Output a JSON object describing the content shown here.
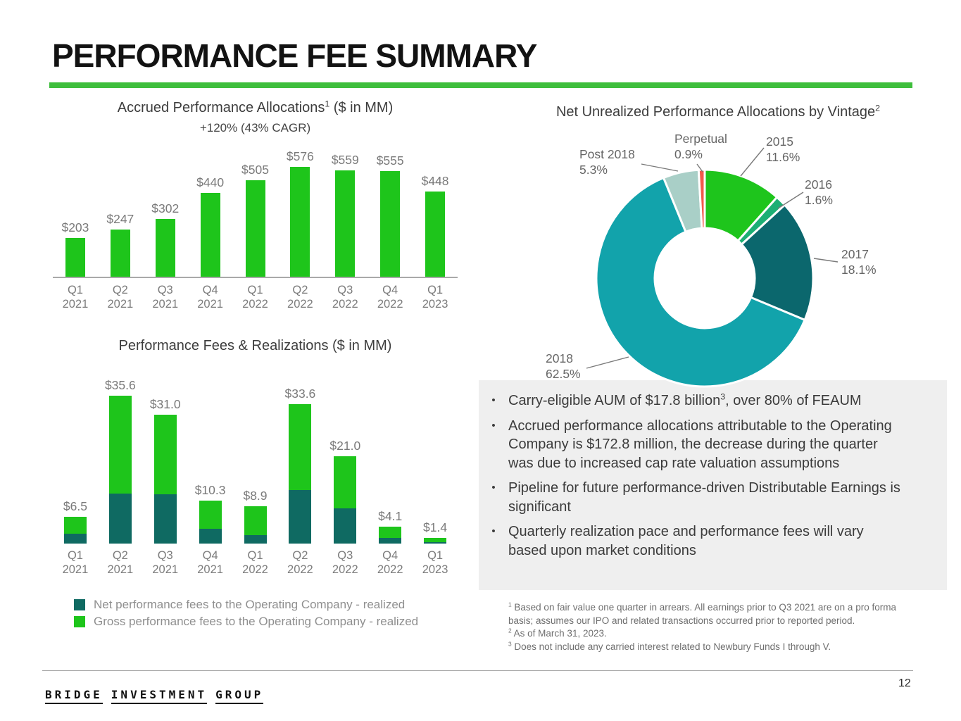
{
  "slide": {
    "title": "PERFORMANCE FEE SUMMARY",
    "page_number": "12",
    "logo_words": [
      "BRIDGE",
      "INVESTMENT",
      "GROUP"
    ],
    "accent_green": "#3ebe3c"
  },
  "chart_data": [
    {
      "id": "accrued-performance-allocations",
      "type": "bar",
      "title_runs": [
        {
          "t": "Accrued Performance Allocations"
        },
        {
          "sup": "1"
        },
        {
          "t": " ($ in MM)"
        }
      ],
      "subtitle": "+120% (43% CAGR)",
      "categories": [
        "Q1 2021",
        "Q2 2021",
        "Q3 2021",
        "Q4 2021",
        "Q1 2022",
        "Q2 2022",
        "Q3 2022",
        "Q4 2022",
        "Q1 2023"
      ],
      "values": [
        203,
        247,
        302,
        440,
        505,
        576,
        559,
        555,
        448
      ],
      "value_labels": [
        "$203",
        "$247",
        "$302",
        "$440",
        "$505",
        "$576",
        "$559",
        "$555",
        "$448"
      ],
      "bar_color": "#1ec51b",
      "axis_color": "#a9a9a9",
      "ylim": [
        0,
        576
      ],
      "grid": false
    },
    {
      "id": "performance-fees-realizations",
      "type": "stacked-bar",
      "title_runs": [
        {
          "t": "Performance Fees & Realizations ($ in MM)"
        }
      ],
      "categories": [
        "Q1 2021",
        "Q2 2021",
        "Q3 2021",
        "Q4 2021",
        "Q1 2022",
        "Q2 2022",
        "Q3 2022",
        "Q4 2022",
        "Q1 2023"
      ],
      "totals": [
        6.5,
        35.6,
        31.0,
        10.3,
        8.9,
        33.6,
        21.0,
        4.1,
        1.4
      ],
      "total_labels": [
        "$6.5",
        "$35.6",
        "$31.0",
        "$10.3",
        "$8.9",
        "$33.6",
        "$21.0",
        "$4.1",
        "$1.4"
      ],
      "series": [
        {
          "name": "Net performance fees to the Operating Company - realized",
          "color": "#0f6a62",
          "estimated_from_pixels": true,
          "values": [
            2.3,
            12.1,
            11.8,
            3.5,
            2.1,
            12.9,
            8.4,
            1.4,
            0.4
          ]
        },
        {
          "name": "Gross performance fees to the Operating Company - realized",
          "color": "#1ec51b",
          "note": "green segment = labeled total minus net segment"
        }
      ],
      "legend_position": "bottom-left",
      "grid": false
    },
    {
      "id": "net-unrealized-by-vintage",
      "type": "pie",
      "donut": true,
      "title_runs": [
        {
          "t": "Net Unrealized Performance Allocations by Vintage"
        },
        {
          "sup": "2"
        }
      ],
      "slices": [
        {
          "label": "2015",
          "pct": 11.6,
          "pct_label": "11.6%",
          "color": "#1ec51c"
        },
        {
          "label": "2016",
          "pct": 1.6,
          "pct_label": "1.6%",
          "color": "#1caf74"
        },
        {
          "label": "2017",
          "pct": 18.1,
          "pct_label": "18.1%",
          "color": "#0b676d"
        },
        {
          "label": "2018",
          "pct": 62.5,
          "pct_label": "62.5%",
          "color": "#12a3ab"
        },
        {
          "label": "Post 2018",
          "pct": 5.3,
          "pct_label": "5.3%",
          "color": "#a9cfc7"
        },
        {
          "label": "Perpetual",
          "pct": 0.9,
          "pct_label": "0.9%",
          "color": "#f2594b"
        }
      ]
    }
  ],
  "bullets": [
    [
      {
        "t": "Carry-eligible AUM of $17.8 billion"
      },
      {
        "sup": "3"
      },
      {
        "t": ", over 80% of FEAUM"
      }
    ],
    [
      {
        "t": "Accrued performance allocations attributable to the Operating Company is $172.8 million, the decrease during the quarter was due to increased cap rate valuation assumptions"
      }
    ],
    [
      {
        "t": "Pipeline for future performance-driven Distributable Earnings is significant"
      }
    ],
    [
      {
        "t": "Quarterly realization pace and performance fees will vary based upon market conditions"
      }
    ]
  ],
  "footnotes": [
    {
      "sup": "1",
      "text": "Based on fair value one quarter in arrears. All earnings prior to Q3 2021 are on a pro forma basis; assumes our IPO and related transactions occurred prior to reported period."
    },
    {
      "sup": "2",
      "text": "As of March 31, 2023."
    },
    {
      "sup": "3",
      "text": "Does not include any carried interest related to Newbury Funds I through V."
    }
  ]
}
